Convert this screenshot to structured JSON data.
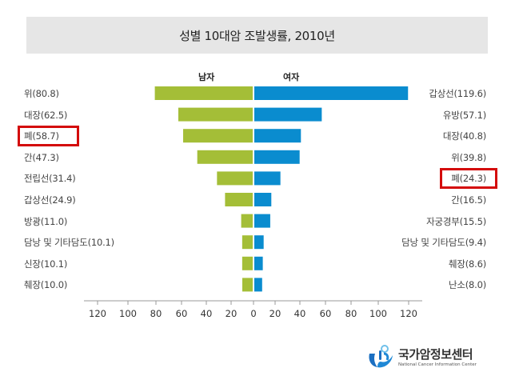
{
  "chart_data": {
    "type": "bar",
    "orientation": "horizontal-butterfly",
    "title": "성별 10대암 조발생률, 2010년",
    "series": [
      {
        "name": "남자",
        "side": "left",
        "color": "#a4be37",
        "categories": [
          "위",
          "대장",
          "폐",
          "간",
          "전립선",
          "갑상선",
          "방광",
          "담낭 및 기타담도",
          "신장",
          "췌장"
        ],
        "values": [
          80.8,
          62.5,
          58.7,
          47.3,
          31.4,
          24.9,
          11.0,
          10.1,
          10.1,
          10.0
        ],
        "labels": [
          "위(80.8)",
          "대장(62.5)",
          "폐(58.7)",
          "간(47.3)",
          "전립선(31.4)",
          "갑상선(24.9)",
          "방광(11.0)",
          "담낭 및 기타담도(10.1)",
          "신장(10.1)",
          "췌장(10.0)"
        ],
        "highlighted": [
          "폐(58.7)"
        ]
      },
      {
        "name": "여자",
        "side": "right",
        "color": "#0a8ccf",
        "categories": [
          "갑상선",
          "유방",
          "대장",
          "위",
          "폐",
          "간",
          "자궁경부",
          "담낭 및 기타담도",
          "췌장",
          "난소"
        ],
        "values": [
          119.6,
          57.1,
          40.8,
          39.8,
          24.3,
          16.5,
          15.5,
          9.4,
          8.6,
          8.0
        ],
        "labels": [
          "갑상선(119.6)",
          "유방(57.1)",
          "대장(40.8)",
          "위(39.8)",
          "폐(24.3)",
          "간(16.5)",
          "자궁경부(15.5)",
          "담낭 및 기타담도(9.4)",
          "췌장(8.6)",
          "난소(8.0)"
        ],
        "highlighted": [
          "폐(24.3)"
        ]
      }
    ],
    "x_ticks_left": [
      "120",
      "100",
      "80",
      "60",
      "40",
      "20",
      "0"
    ],
    "x_ticks_right": [
      "20",
      "40",
      "60",
      "80",
      "100",
      "120"
    ],
    "xlim": [
      0,
      120
    ],
    "xlabel": "",
    "ylabel": "",
    "grid": false,
    "highlight_color": "#d40b0b"
  },
  "logo": {
    "name_ko": "국가암정보센터",
    "name_en": "National Cancer Information Center"
  }
}
